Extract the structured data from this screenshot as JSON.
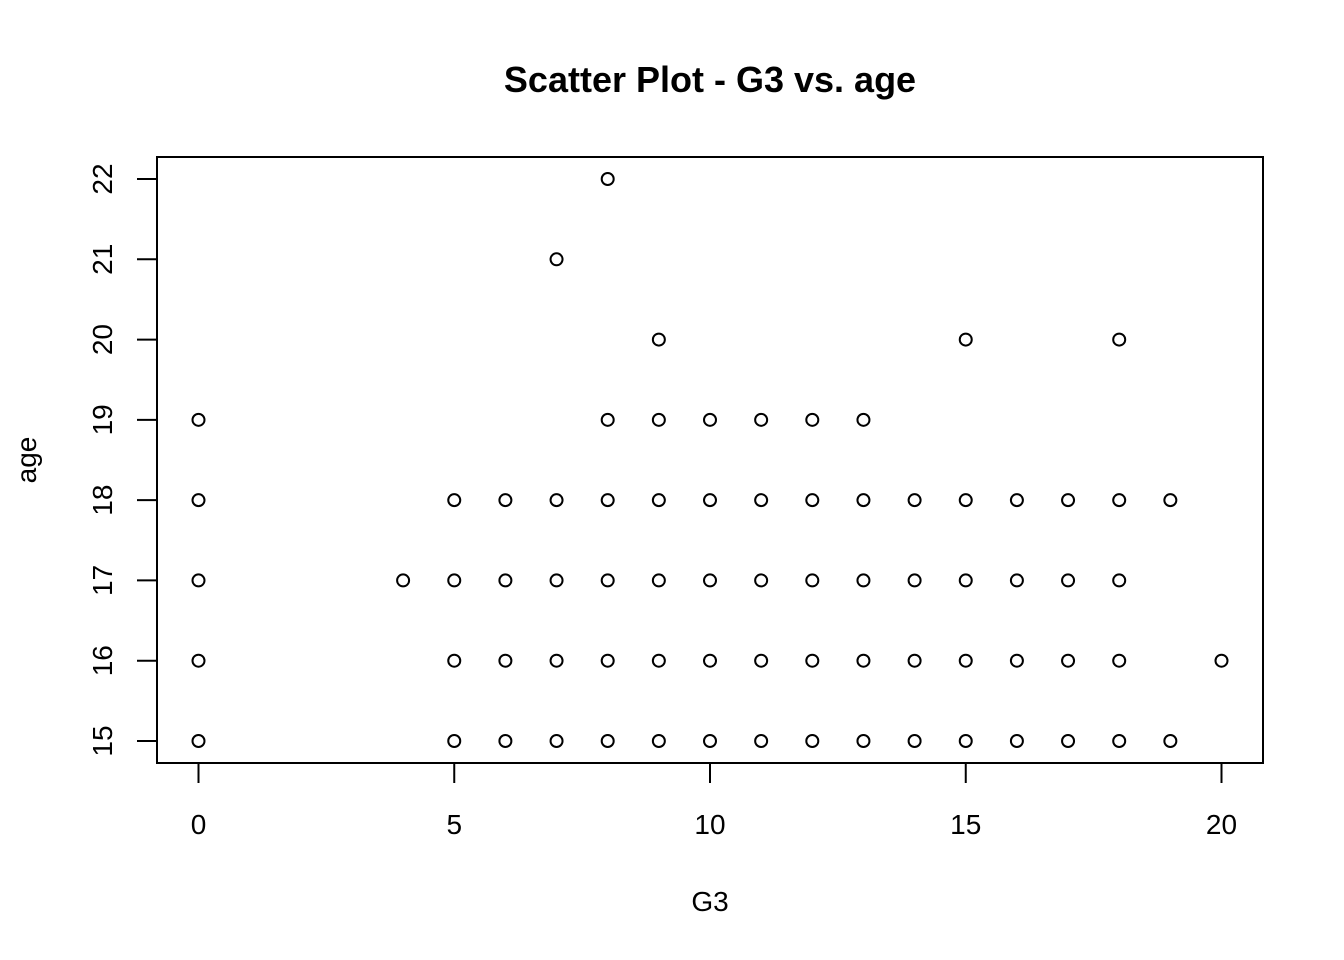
{
  "chart_data": {
    "type": "scatter",
    "title": "Scatter Plot - G3 vs. age",
    "xlabel": "G3",
    "ylabel": "age",
    "xlim": [
      0,
      20
    ],
    "ylim": [
      15,
      22
    ],
    "xticks": [
      0,
      5,
      10,
      15,
      20
    ],
    "yticks": [
      15,
      16,
      17,
      18,
      19,
      20,
      21,
      22
    ],
    "grid": false,
    "marker": "open-circle",
    "points": [
      [
        0,
        15
      ],
      [
        0,
        16
      ],
      [
        0,
        17
      ],
      [
        0,
        18
      ],
      [
        0,
        19
      ],
      [
        4,
        17
      ],
      [
        5,
        15
      ],
      [
        5,
        16
      ],
      [
        5,
        17
      ],
      [
        5,
        18
      ],
      [
        6,
        15
      ],
      [
        6,
        16
      ],
      [
        6,
        17
      ],
      [
        6,
        18
      ],
      [
        7,
        15
      ],
      [
        7,
        16
      ],
      [
        7,
        17
      ],
      [
        7,
        18
      ],
      [
        7,
        21
      ],
      [
        8,
        15
      ],
      [
        8,
        16
      ],
      [
        8,
        17
      ],
      [
        8,
        18
      ],
      [
        8,
        19
      ],
      [
        8,
        22
      ],
      [
        9,
        15
      ],
      [
        9,
        16
      ],
      [
        9,
        17
      ],
      [
        9,
        18
      ],
      [
        9,
        19
      ],
      [
        9,
        20
      ],
      [
        10,
        15
      ],
      [
        10,
        16
      ],
      [
        10,
        17
      ],
      [
        10,
        18
      ],
      [
        10,
        19
      ],
      [
        11,
        15
      ],
      [
        11,
        16
      ],
      [
        11,
        17
      ],
      [
        11,
        18
      ],
      [
        11,
        19
      ],
      [
        12,
        15
      ],
      [
        12,
        16
      ],
      [
        12,
        17
      ],
      [
        12,
        18
      ],
      [
        12,
        19
      ],
      [
        13,
        15
      ],
      [
        13,
        16
      ],
      [
        13,
        17
      ],
      [
        13,
        18
      ],
      [
        13,
        19
      ],
      [
        14,
        15
      ],
      [
        14,
        16
      ],
      [
        14,
        17
      ],
      [
        14,
        18
      ],
      [
        15,
        15
      ],
      [
        15,
        16
      ],
      [
        15,
        17
      ],
      [
        15,
        18
      ],
      [
        15,
        20
      ],
      [
        16,
        15
      ],
      [
        16,
        16
      ],
      [
        16,
        17
      ],
      [
        16,
        18
      ],
      [
        17,
        15
      ],
      [
        17,
        16
      ],
      [
        17,
        17
      ],
      [
        17,
        18
      ],
      [
        18,
        15
      ],
      [
        18,
        16
      ],
      [
        18,
        17
      ],
      [
        18,
        18
      ],
      [
        18,
        20
      ],
      [
        19,
        15
      ],
      [
        19,
        18
      ],
      [
        20,
        16
      ]
    ]
  }
}
